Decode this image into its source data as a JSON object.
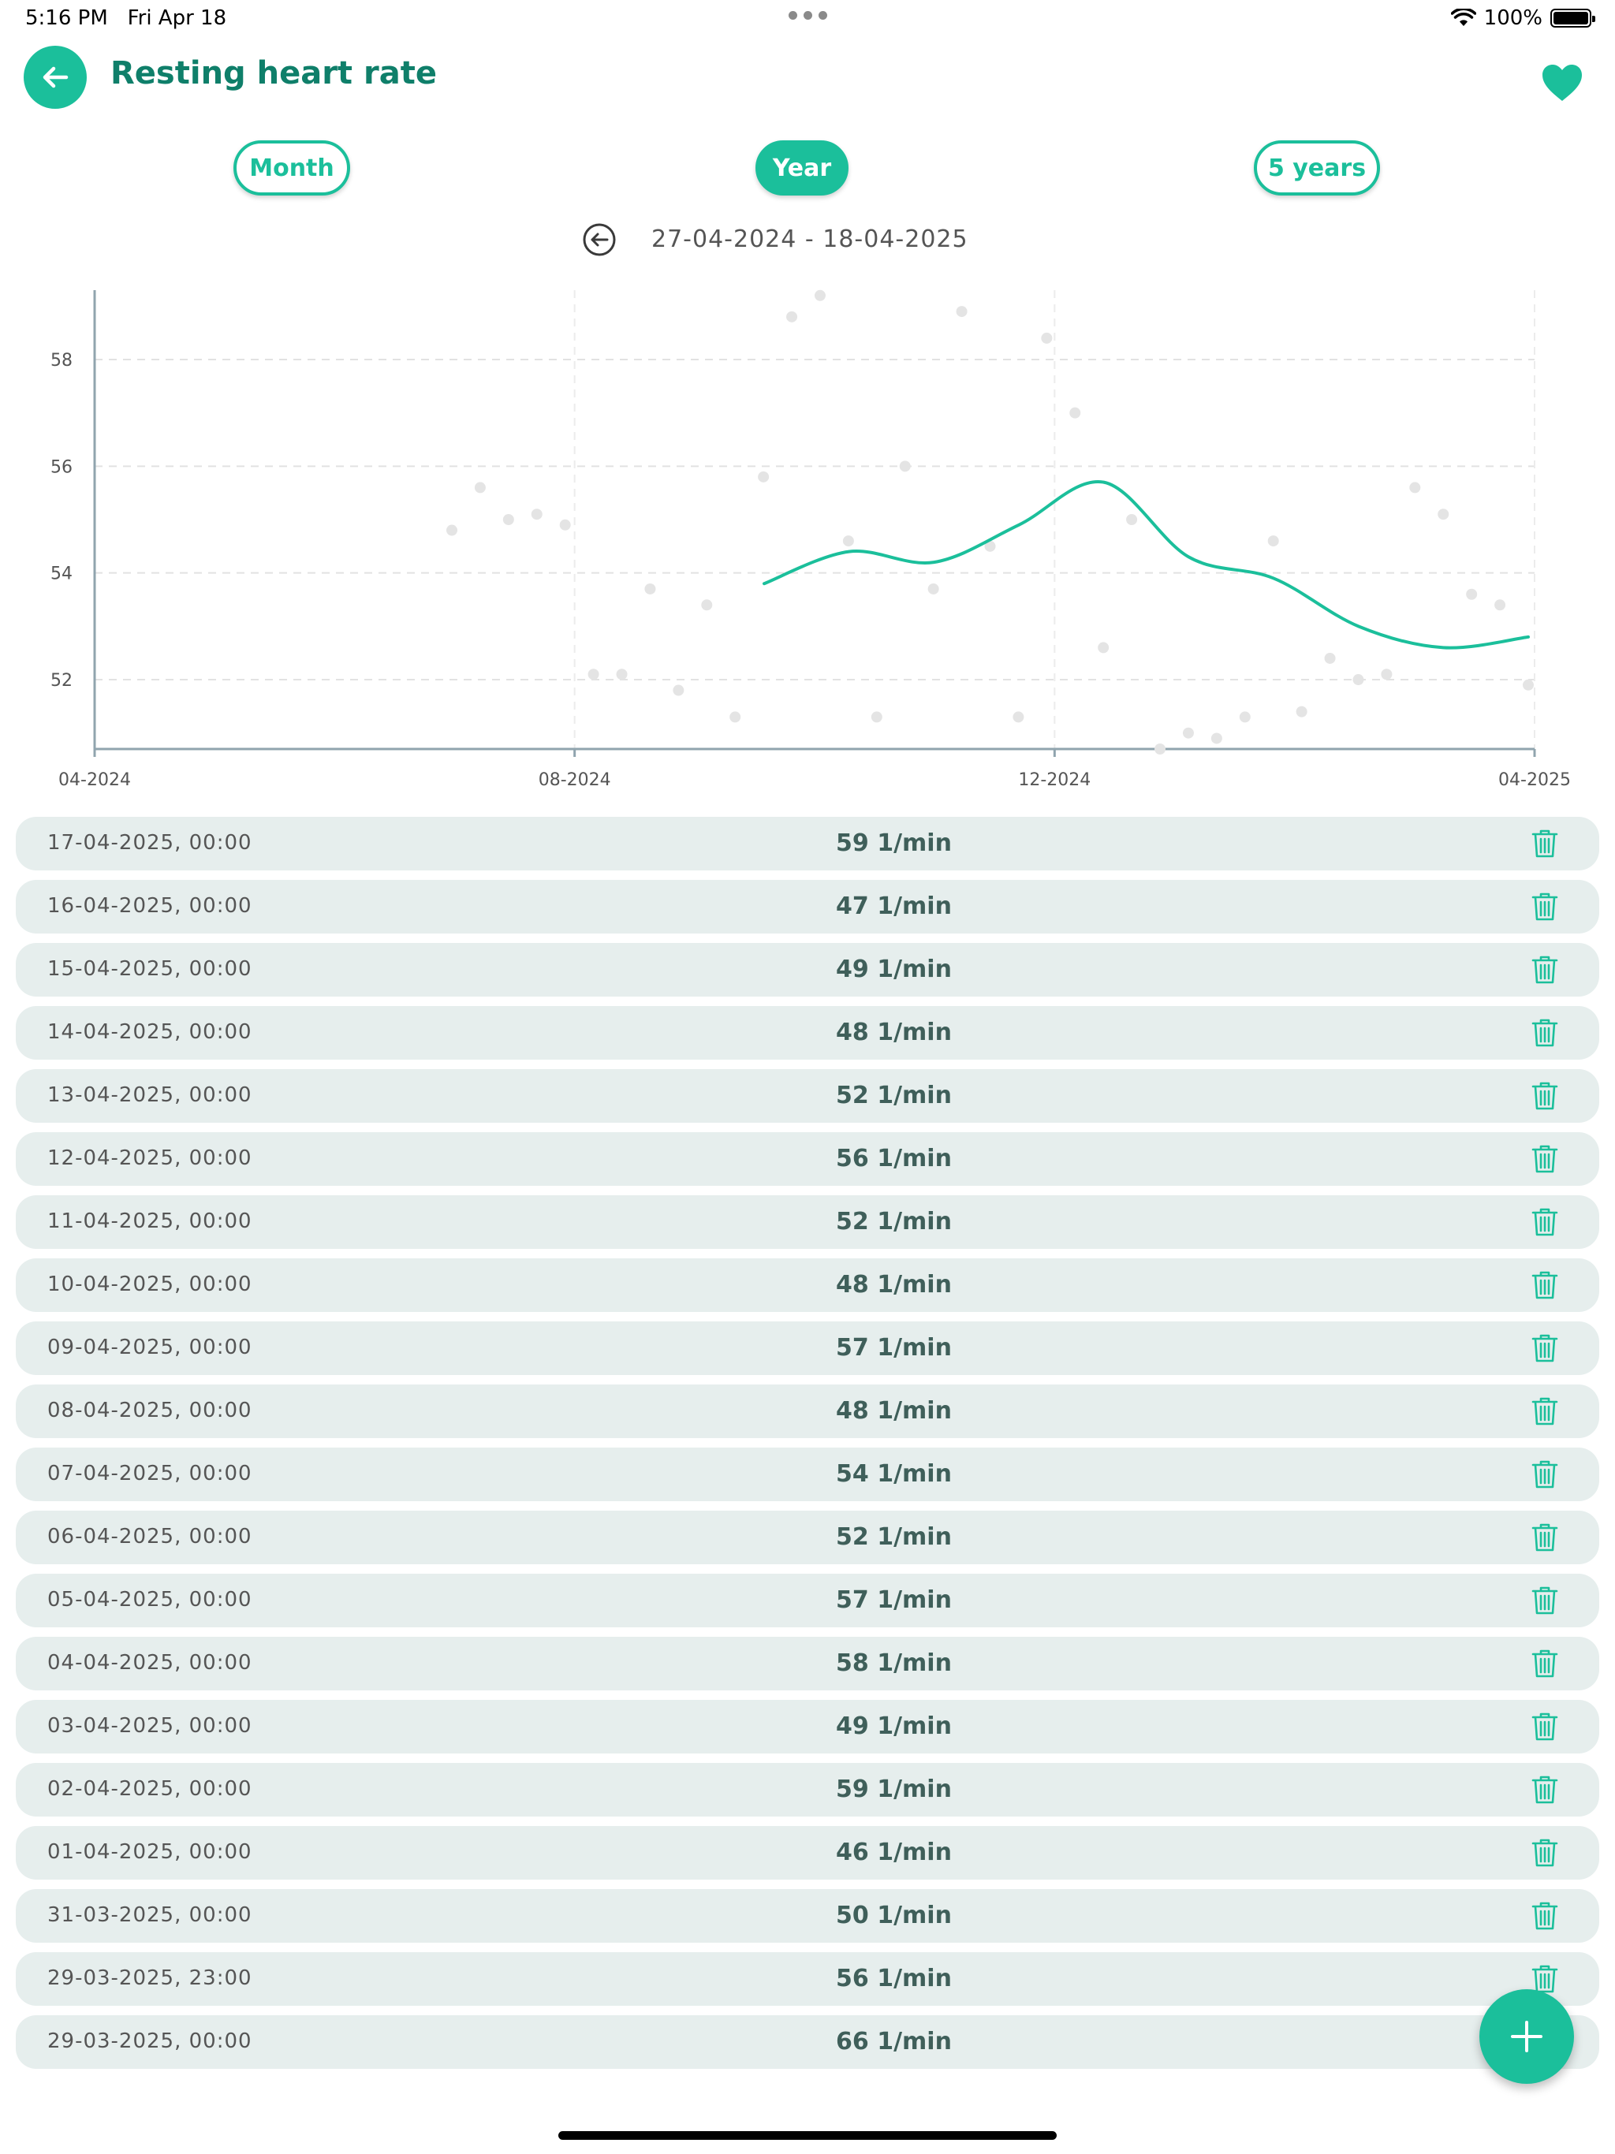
{
  "status": {
    "time": "5:16 PM",
    "date": "Fri Apr 18",
    "battery": "100%"
  },
  "header": {
    "title": "Resting heart rate"
  },
  "tabs": [
    {
      "label": "Month",
      "active": false
    },
    {
      "label": "Year",
      "active": true
    },
    {
      "label": "5 years",
      "active": false
    }
  ],
  "range": {
    "label": "27-04-2024 - 18-04-2025"
  },
  "colors": {
    "accent": "#1bbf9b",
    "title": "#0f7f6a",
    "row_bg": "#e6eeed"
  },
  "chart_data": {
    "type": "scatter",
    "x_ticks": [
      "04-2024",
      "08-2024",
      "12-2024",
      "04-2025"
    ],
    "y_ticks": [
      52,
      54,
      56,
      58
    ],
    "ylim": [
      50.7,
      59.3
    ],
    "grid": true,
    "points": [
      [
        "06-2024 (early)",
        54.8
      ],
      [
        "06-2024",
        55.6
      ],
      [
        "06-2024 (mid)",
        55.0
      ],
      [
        "07-2024",
        55.1
      ],
      [
        "07-2024 (late)",
        54.9
      ],
      [
        "08-2024",
        52.1
      ],
      [
        "08-2024 (mid)",
        52.1
      ],
      [
        "08-2024 (late)",
        53.7
      ],
      [
        "09-2024",
        51.8
      ],
      [
        "09-2024 (mid)",
        53.4
      ],
      [
        "09-2024 (late)",
        51.3
      ],
      [
        "10-2024",
        55.8
      ],
      [
        "10-2024 (mid)",
        58.8
      ],
      [
        "10-2024 (late)",
        59.2
      ],
      [
        "11-2024 (early)",
        54.6
      ],
      [
        "11-2024",
        51.3
      ],
      [
        "11-2024 (mid)",
        56.0
      ],
      [
        "11-2024 (late)",
        53.7
      ],
      [
        "11-2024 (end)",
        58.9
      ],
      [
        "12-2024 (early)",
        54.5
      ],
      [
        "12-2024",
        51.3
      ],
      [
        "12-2024 (mid)",
        58.4
      ],
      [
        "12-2024 (late)",
        57.0
      ],
      [
        "01-2025",
        52.6
      ],
      [
        "01-2025 (mid)",
        55.0
      ],
      [
        "01-2025 (late)",
        50.7
      ],
      [
        "02-2025",
        51.0
      ],
      [
        "02-2025 (mid)",
        50.9
      ],
      [
        "02-2025 (late)",
        51.3
      ],
      [
        "03-2025 (early)",
        54.6
      ],
      [
        "03-2025",
        51.4
      ],
      [
        "03-2025 (mid)",
        52.4
      ],
      [
        "03-2025 (late)",
        52.0
      ],
      [
        "04-2025 (early)",
        52.1
      ],
      [
        "04-2025",
        55.6
      ],
      [
        "04-2025 (mid)",
        55.1
      ],
      [
        "04-2025 (late)",
        53.6
      ],
      [
        "04-2025 (end)",
        53.4
      ],
      [
        "04-2025 (last)",
        51.9
      ]
    ],
    "trend": [
      53.8,
      54.4,
      54.2,
      54.9,
      55.7,
      54.3,
      53.9,
      53.0,
      52.6,
      52.8
    ]
  },
  "entries": [
    {
      "date": "17-04-2025, 00:00",
      "value": "59 1/min"
    },
    {
      "date": "16-04-2025, 00:00",
      "value": "47 1/min"
    },
    {
      "date": "15-04-2025, 00:00",
      "value": "49 1/min"
    },
    {
      "date": "14-04-2025, 00:00",
      "value": "48 1/min"
    },
    {
      "date": "13-04-2025, 00:00",
      "value": "52 1/min"
    },
    {
      "date": "12-04-2025, 00:00",
      "value": "56 1/min"
    },
    {
      "date": "11-04-2025, 00:00",
      "value": "52 1/min"
    },
    {
      "date": "10-04-2025, 00:00",
      "value": "48 1/min"
    },
    {
      "date": "09-04-2025, 00:00",
      "value": "57 1/min"
    },
    {
      "date": "08-04-2025, 00:00",
      "value": "48 1/min"
    },
    {
      "date": "07-04-2025, 00:00",
      "value": "54 1/min"
    },
    {
      "date": "06-04-2025, 00:00",
      "value": "52 1/min"
    },
    {
      "date": "05-04-2025, 00:00",
      "value": "57 1/min"
    },
    {
      "date": "04-04-2025, 00:00",
      "value": "58 1/min"
    },
    {
      "date": "03-04-2025, 00:00",
      "value": "49 1/min"
    },
    {
      "date": "02-04-2025, 00:00",
      "value": "59 1/min"
    },
    {
      "date": "01-04-2025, 00:00",
      "value": "46 1/min"
    },
    {
      "date": "31-03-2025, 00:00",
      "value": "50 1/min"
    },
    {
      "date": "29-03-2025, 23:00",
      "value": "56 1/min"
    },
    {
      "date": "29-03-2025, 00:00",
      "value": "66 1/min"
    }
  ]
}
